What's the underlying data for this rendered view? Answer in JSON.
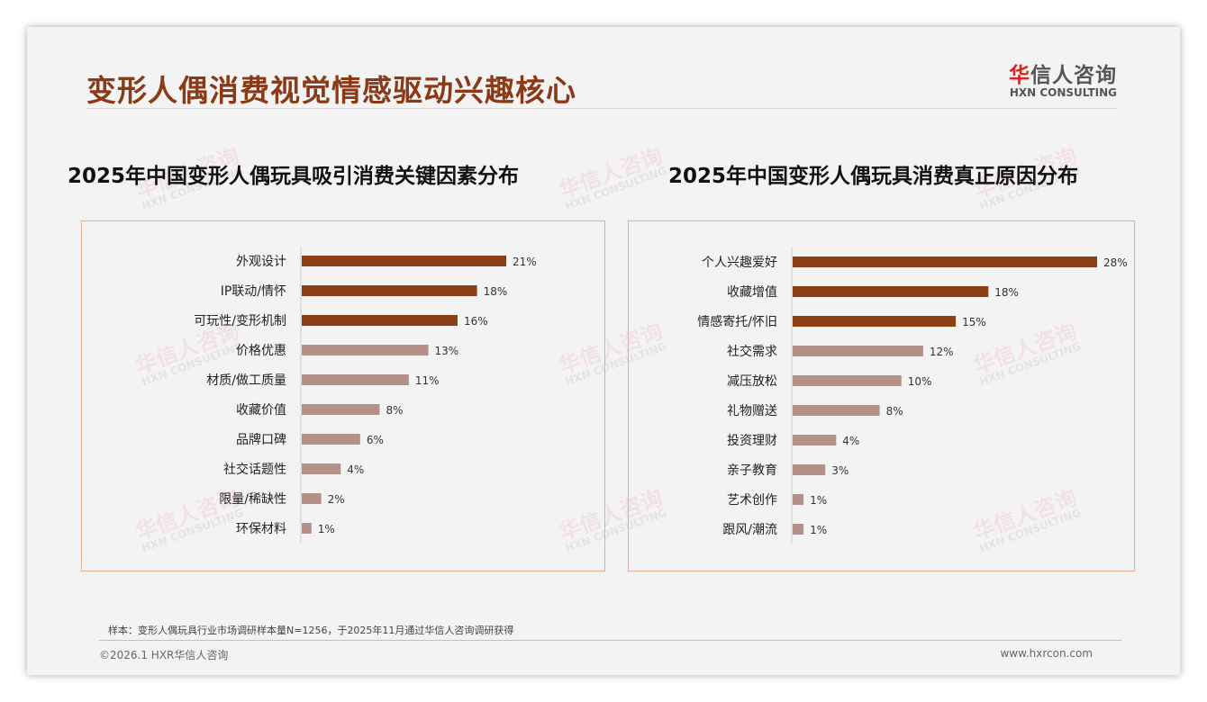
{
  "title": "变形人偶消费视觉情感驱动兴趣核心",
  "logo": {
    "cn_mark": "华",
    "cn_rest": "信人咨询",
    "en": "HXN CONSULTING"
  },
  "watermark": {
    "cn": "华信人咨询",
    "en": "HXN CONSULTING"
  },
  "colors": {
    "title": "#8b3a17",
    "bar_top": "#8b3f14",
    "bar_rest": "#b39088",
    "panel_border": "#e6ad8c"
  },
  "chart_data": [
    {
      "type": "bar",
      "orientation": "horizontal",
      "title": "2025年中国变形人偶玩具吸引消费关键因素分布",
      "categories": [
        "外观设计",
        "IP联动/情怀",
        "可玩性/变形机制",
        "价格优惠",
        "材质/做工质量",
        "收藏价值",
        "品牌口碑",
        "社交话题性",
        "限量/稀缺性",
        "环保材料"
      ],
      "values": [
        21,
        18,
        16,
        13,
        11,
        8,
        6,
        4,
        2,
        1
      ],
      "unit": "%",
      "xlim": [
        0,
        21
      ],
      "highlight_top": 3
    },
    {
      "type": "bar",
      "orientation": "horizontal",
      "title": "2025年中国变形人偶玩具消费真正原因分布",
      "categories": [
        "个人兴趣爱好",
        "收藏增值",
        "情感寄托/怀旧",
        "社交需求",
        "减压放松",
        "礼物赠送",
        "投资理财",
        "亲子教育",
        "艺术创作",
        "跟风/潮流"
      ],
      "values": [
        28,
        18,
        15,
        12,
        10,
        8,
        4,
        3,
        1,
        1
      ],
      "unit": "%",
      "xlim": [
        0,
        28
      ],
      "highlight_top": 3
    }
  ],
  "footer": {
    "note": "样本：变形人偶玩具行业市场调研样本量N=1256，于2025年11月通过华信人咨询调研获得",
    "copyright": "©2026.1 HXR华信人咨询",
    "website": "www.hxrcon.com"
  }
}
